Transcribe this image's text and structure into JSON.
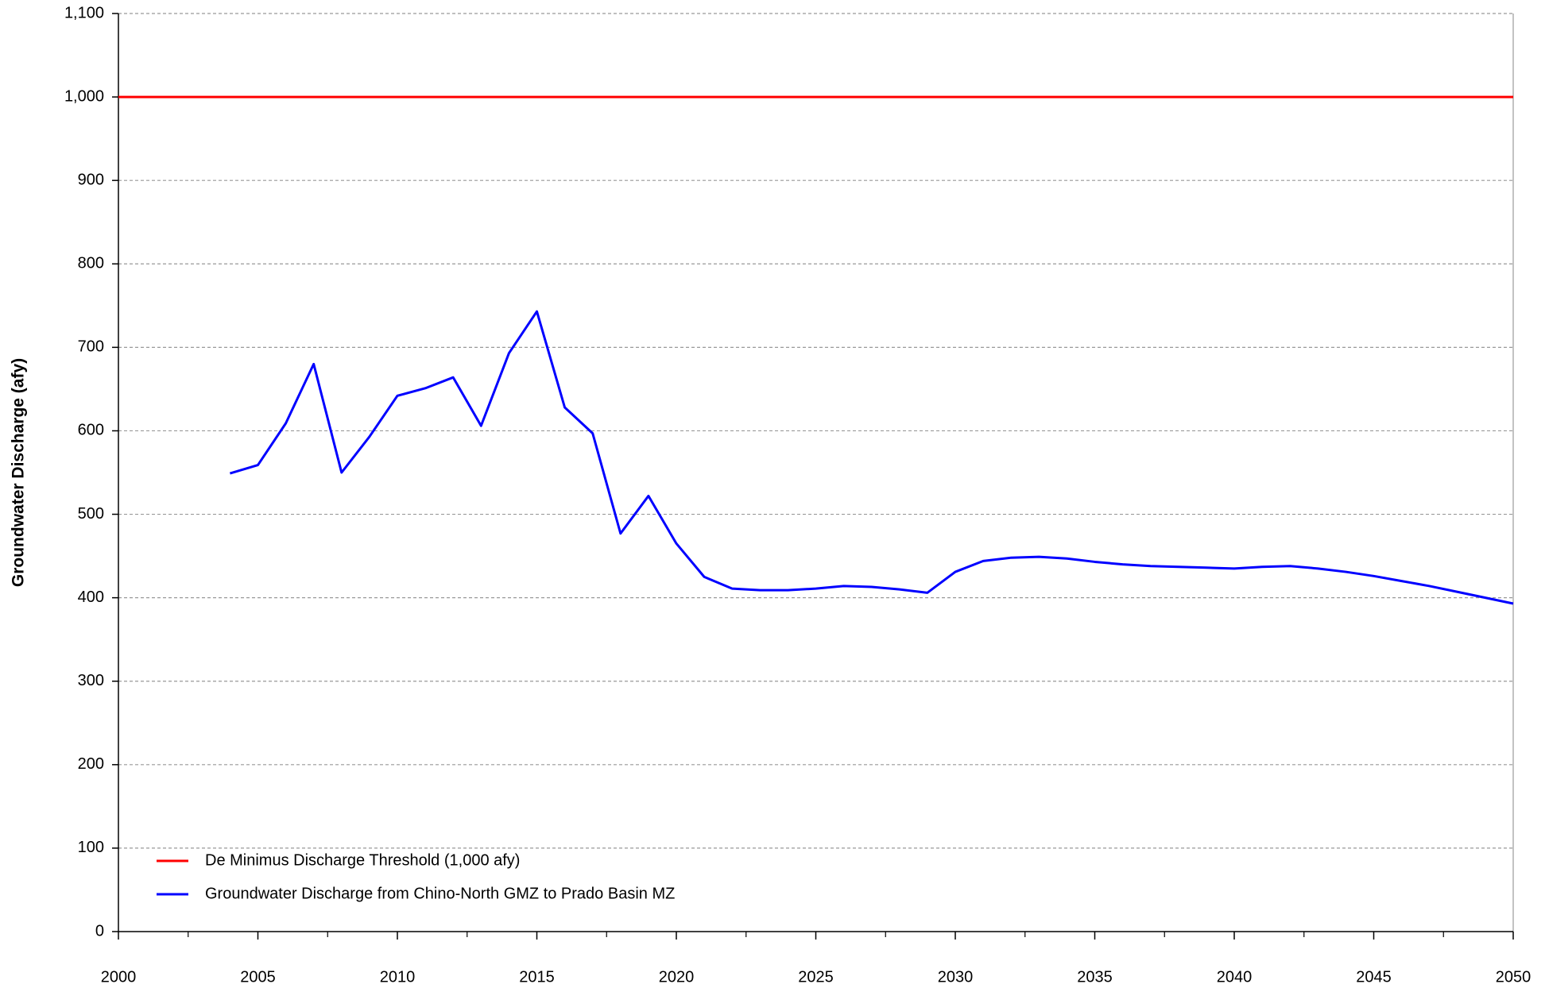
{
  "chart_data": {
    "type": "line",
    "ylabel": "Groundwater Discharge (afy)",
    "xlim": [
      2000,
      2050
    ],
    "xticks": [
      2000,
      2005,
      2010,
      2015,
      2020,
      2025,
      2030,
      2035,
      2040,
      2045,
      2050
    ],
    "ylim": [
      0,
      1100
    ],
    "yticks": [
      0,
      100,
      200,
      300,
      400,
      500,
      600,
      700,
      800,
      900,
      {
        "value": 1000,
        "label": "1,000"
      },
      {
        "value": 1100,
        "label": "1,100"
      }
    ],
    "grid": true,
    "legend": "lower left",
    "series": [
      {
        "name": "De Minimus Discharge Threshold (1,000 afy)",
        "color": "#ff0000",
        "x": [
          2000,
          2050
        ],
        "values": [
          1000,
          1000
        ]
      },
      {
        "name": "Groundwater Discharge from Chino-North GMZ to Prado Basin MZ",
        "color": "#0000ff",
        "x": [
          2004,
          2005,
          2006,
          2007,
          2008,
          2009,
          2010,
          2011,
          2012,
          2013,
          2014,
          2015,
          2016,
          2017,
          2018,
          2019,
          2020,
          2021,
          2022,
          2023,
          2024,
          2025,
          2026,
          2027,
          2028,
          2029,
          2030,
          2031,
          2032,
          2033,
          2034,
          2035,
          2036,
          2037,
          2038,
          2039,
          2040,
          2041,
          2042,
          2043,
          2044,
          2045,
          2046,
          2047,
          2048,
          2049,
          2050
        ],
        "values": [
          549,
          559,
          609,
          680,
          550,
          593,
          642,
          651,
          664,
          606,
          693,
          743,
          628,
          597,
          477,
          522,
          465,
          425,
          411,
          409,
          409,
          411,
          414,
          413,
          410,
          406,
          431,
          444,
          448,
          449,
          447,
          443,
          440,
          438,
          437,
          436,
          435,
          437,
          438,
          435,
          431,
          426,
          420,
          414,
          407,
          400,
          393
        ]
      }
    ]
  }
}
